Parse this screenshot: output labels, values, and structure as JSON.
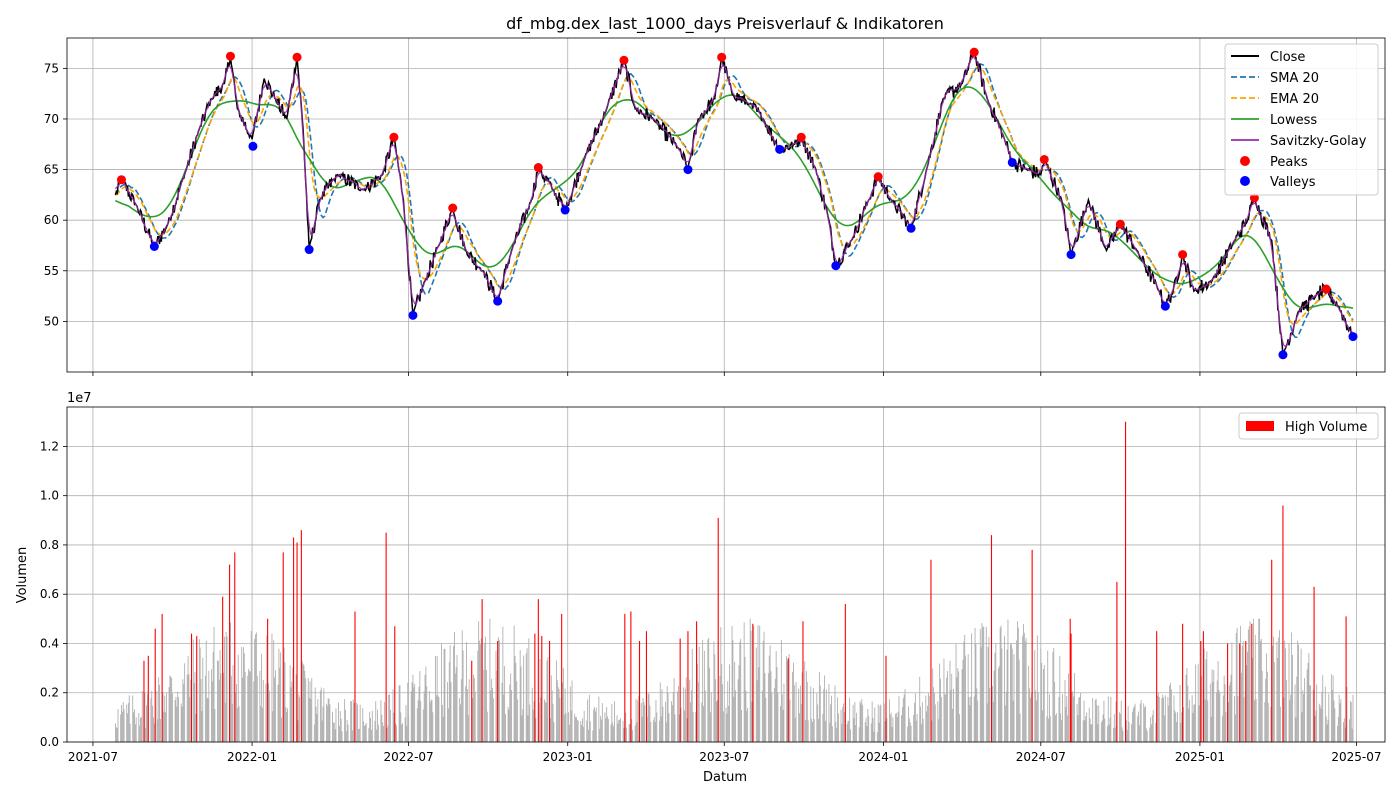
{
  "chart_data": [
    {
      "type": "line",
      "title": "df_mbg.dex_last_1000_days Preisverlauf & Indikatoren",
      "xlabel": "",
      "ylabel": "",
      "x_ticks": [
        "2021-07",
        "2022-01",
        "2022-07",
        "2023-01",
        "2023-07",
        "2024-01",
        "2024-07",
        "2025-01",
        "2025-07"
      ],
      "xlim": [
        "2021-06-01",
        "2025-08-03"
      ],
      "ylim": [
        45,
        78
      ],
      "y_ticks": [
        "50",
        "55",
        "60",
        "65",
        "70",
        "75"
      ],
      "grid": true,
      "legend_position": "top-right",
      "legend": [
        "Close",
        "SMA 20",
        "EMA 20",
        "Lowess",
        "Savitzky-Golay",
        "Peaks",
        "Valleys"
      ],
      "colors": {
        "close": "#000000",
        "sma": "#1f77b4",
        "ema": "#ffa500",
        "lowess": "#2ca02c",
        "savgol": "#9c27b0",
        "peaks": "#ff0000",
        "valleys": "#0000ff"
      },
      "close_anchors": [
        [
          "2021-07-27",
          62.5
        ],
        [
          "2021-08-03",
          64.0
        ],
        [
          "2021-08-20",
          61.5
        ],
        [
          "2021-09-10",
          57.4
        ],
        [
          "2021-09-25",
          59.5
        ],
        [
          "2021-10-15",
          64.5
        ],
        [
          "2021-11-01",
          69.0
        ],
        [
          "2021-11-15",
          72.0
        ],
        [
          "2021-11-30",
          73.5
        ],
        [
          "2021-12-07",
          76.2
        ],
        [
          "2021-12-15",
          71.0
        ],
        [
          "2022-01-01",
          68.0
        ],
        [
          "2022-01-15",
          74.0
        ],
        [
          "2022-01-28",
          72.0
        ],
        [
          "2022-02-10",
          70.0
        ],
        [
          "2022-02-22",
          76.1
        ],
        [
          "2022-03-01",
          69.0
        ],
        [
          "2022-03-08",
          57.1
        ],
        [
          "2022-03-20",
          62.0
        ],
        [
          "2022-04-10",
          64.5
        ],
        [
          "2022-05-10",
          63.0
        ],
        [
          "2022-06-01",
          64.5
        ],
        [
          "2022-06-14",
          68.2
        ],
        [
          "2022-06-25",
          62.0
        ],
        [
          "2022-07-06",
          50.6
        ],
        [
          "2022-07-20",
          54.0
        ],
        [
          "2022-08-05",
          57.5
        ],
        [
          "2022-08-21",
          61.2
        ],
        [
          "2022-09-05",
          57.0
        ],
        [
          "2022-09-25",
          55.0
        ],
        [
          "2022-10-12",
          52.0
        ],
        [
          "2022-10-28",
          57.0
        ],
        [
          "2022-11-20",
          62.0
        ],
        [
          "2022-11-28",
          65.2
        ],
        [
          "2022-12-15",
          63.0
        ],
        [
          "2022-12-29",
          61.0
        ],
        [
          "2023-01-20",
          66.0
        ],
        [
          "2023-02-15",
          71.0
        ],
        [
          "2023-03-07",
          75.8
        ],
        [
          "2023-03-20",
          71.0
        ],
        [
          "2023-04-10",
          70.0
        ],
        [
          "2023-05-10",
          67.0
        ],
        [
          "2023-05-20",
          65.0
        ],
        [
          "2023-06-01",
          70.0
        ],
        [
          "2023-06-20",
          72.0
        ],
        [
          "2023-06-28",
          76.1
        ],
        [
          "2023-07-10",
          72.5
        ],
        [
          "2023-07-30",
          71.5
        ],
        [
          "2023-08-15",
          70.0
        ],
        [
          "2023-09-03",
          67.0
        ],
        [
          "2023-09-20",
          67.5
        ],
        [
          "2023-09-28",
          68.2
        ],
        [
          "2023-10-15",
          65.0
        ],
        [
          "2023-10-30",
          60.0
        ],
        [
          "2023-11-07",
          55.5
        ],
        [
          "2023-11-25",
          58.0
        ],
        [
          "2023-12-15",
          62.0
        ],
        [
          "2023-12-26",
          64.3
        ],
        [
          "2024-01-10",
          62.0
        ],
        [
          "2024-02-02",
          59.2
        ],
        [
          "2024-02-20",
          65.0
        ],
        [
          "2024-03-10",
          72.0
        ],
        [
          "2024-04-01",
          73.5
        ],
        [
          "2024-04-15",
          76.6
        ],
        [
          "2024-04-30",
          72.0
        ],
        [
          "2024-05-20",
          68.0
        ],
        [
          "2024-05-29",
          65.7
        ],
        [
          "2024-06-15",
          65.0
        ],
        [
          "2024-07-01",
          64.5
        ],
        [
          "2024-07-05",
          66.0
        ],
        [
          "2024-07-25",
          62.0
        ],
        [
          "2024-08-05",
          56.6
        ],
        [
          "2024-08-25",
          62.0
        ],
        [
          "2024-09-15",
          57.0
        ],
        [
          "2024-10-01",
          59.6
        ],
        [
          "2024-10-20",
          57.0
        ],
        [
          "2024-11-15",
          53.0
        ],
        [
          "2024-11-22",
          51.5
        ],
        [
          "2024-12-01",
          53.0
        ],
        [
          "2024-12-12",
          56.6
        ],
        [
          "2024-12-25",
          53.0
        ],
        [
          "2025-01-15",
          54.0
        ],
        [
          "2025-02-10",
          58.0
        ],
        [
          "2025-02-25",
          60.0
        ],
        [
          "2025-03-05",
          62.2
        ],
        [
          "2025-03-25",
          58.0
        ],
        [
          "2025-04-07",
          46.7
        ],
        [
          "2025-04-25",
          51.0
        ],
        [
          "2025-05-15",
          52.5
        ],
        [
          "2025-05-27",
          53.2
        ],
        [
          "2025-06-10",
          51.5
        ],
        [
          "2025-06-27",
          48.5
        ]
      ],
      "peaks": [
        [
          "2021-08-03",
          64.0
        ],
        [
          "2021-12-07",
          76.2
        ],
        [
          "2022-02-22",
          76.1
        ],
        [
          "2022-06-14",
          68.2
        ],
        [
          "2022-08-21",
          61.2
        ],
        [
          "2022-11-28",
          65.2
        ],
        [
          "2023-03-07",
          75.8
        ],
        [
          "2023-06-28",
          76.1
        ],
        [
          "2023-09-28",
          68.2
        ],
        [
          "2023-12-26",
          64.3
        ],
        [
          "2024-04-15",
          76.6
        ],
        [
          "2024-07-05",
          66.0
        ],
        [
          "2024-10-01",
          59.6
        ],
        [
          "2024-12-12",
          56.6
        ],
        [
          "2025-03-05",
          62.2
        ],
        [
          "2025-05-27",
          53.2
        ]
      ],
      "valleys": [
        [
          "2021-09-10",
          57.4
        ],
        [
          "2022-01-02",
          67.3
        ],
        [
          "2022-03-08",
          57.1
        ],
        [
          "2022-07-06",
          50.6
        ],
        [
          "2022-10-12",
          52.0
        ],
        [
          "2022-12-29",
          61.0
        ],
        [
          "2023-05-20",
          65.0
        ],
        [
          "2023-09-03",
          67.0
        ],
        [
          "2023-11-07",
          55.5
        ],
        [
          "2024-02-02",
          59.2
        ],
        [
          "2024-05-29",
          65.7
        ],
        [
          "2024-08-05",
          56.6
        ],
        [
          "2024-11-22",
          51.5
        ],
        [
          "2025-04-07",
          46.7
        ],
        [
          "2025-06-27",
          48.5
        ]
      ]
    },
    {
      "type": "bar",
      "xlabel": "Datum",
      "ylabel": "Volumen",
      "scale_label": "1e7",
      "x_ticks": [
        "2021-07",
        "2022-01",
        "2022-07",
        "2023-01",
        "2023-07",
        "2024-01",
        "2024-07",
        "2025-01",
        "2025-07"
      ],
      "xlim": [
        "2021-06-01",
        "2025-08-03"
      ],
      "ylim": [
        0,
        1.36
      ],
      "y_ticks": [
        "0.0",
        "0.2",
        "0.4",
        "0.6",
        "0.8",
        "1.0",
        "1.2"
      ],
      "grid": true,
      "legend_position": "top-right",
      "legend": [
        "High Volume"
      ],
      "colors": {
        "normal": "#b0b0b0",
        "high": "#ff0000"
      },
      "normal_base": 0.22,
      "high_volume": [
        [
          "2021-08-29",
          0.33
        ],
        [
          "2021-09-03",
          0.35
        ],
        [
          "2021-09-11",
          0.46
        ],
        [
          "2021-09-19",
          0.52
        ],
        [
          "2021-10-23",
          0.44
        ],
        [
          "2021-10-29",
          0.43
        ],
        [
          "2021-11-28",
          0.59
        ],
        [
          "2021-12-06",
          0.72
        ],
        [
          "2021-12-12",
          0.77
        ],
        [
          "2022-01-19",
          0.5
        ],
        [
          "2022-02-06",
          0.77
        ],
        [
          "2022-02-18",
          0.83
        ],
        [
          "2022-02-22",
          0.81
        ],
        [
          "2022-02-27",
          0.86
        ],
        [
          "2022-04-30",
          0.53
        ],
        [
          "2022-06-05",
          0.85
        ],
        [
          "2022-06-15",
          0.47
        ],
        [
          "2022-09-12",
          0.33
        ],
        [
          "2022-09-24",
          0.58
        ],
        [
          "2022-10-12",
          0.41
        ],
        [
          "2022-11-24",
          0.44
        ],
        [
          "2022-11-28",
          0.58
        ],
        [
          "2022-12-02",
          0.43
        ],
        [
          "2022-12-11",
          0.41
        ],
        [
          "2022-12-25",
          0.52
        ],
        [
          "2023-03-08",
          0.52
        ],
        [
          "2023-03-15",
          0.53
        ],
        [
          "2023-03-25",
          0.41
        ],
        [
          "2023-04-02",
          0.45
        ],
        [
          "2023-05-11",
          0.42
        ],
        [
          "2023-05-20",
          0.45
        ],
        [
          "2023-05-30",
          0.49
        ],
        [
          "2023-06-24",
          0.91
        ],
        [
          "2023-08-03",
          0.48
        ],
        [
          "2023-09-13",
          0.34
        ],
        [
          "2023-09-30",
          0.49
        ],
        [
          "2023-11-18",
          0.56
        ],
        [
          "2024-01-04",
          0.35
        ],
        [
          "2024-02-25",
          0.74
        ],
        [
          "2024-05-05",
          0.84
        ],
        [
          "2024-06-21",
          0.78
        ],
        [
          "2024-08-04",
          0.5
        ],
        [
          "2024-08-05",
          0.44
        ],
        [
          "2024-09-27",
          0.65
        ],
        [
          "2024-10-07",
          1.3
        ],
        [
          "2024-11-12",
          0.45
        ],
        [
          "2024-12-12",
          0.48
        ],
        [
          "2025-01-02",
          0.41
        ],
        [
          "2025-01-05",
          0.45
        ],
        [
          "2025-02-02",
          0.4
        ],
        [
          "2025-02-16",
          0.4
        ],
        [
          "2025-02-23",
          0.41
        ],
        [
          "2025-03-02",
          0.48
        ],
        [
          "2025-03-25",
          0.74
        ],
        [
          "2025-04-07",
          0.96
        ],
        [
          "2025-05-13",
          0.63
        ],
        [
          "2025-06-19",
          0.51
        ]
      ]
    }
  ]
}
